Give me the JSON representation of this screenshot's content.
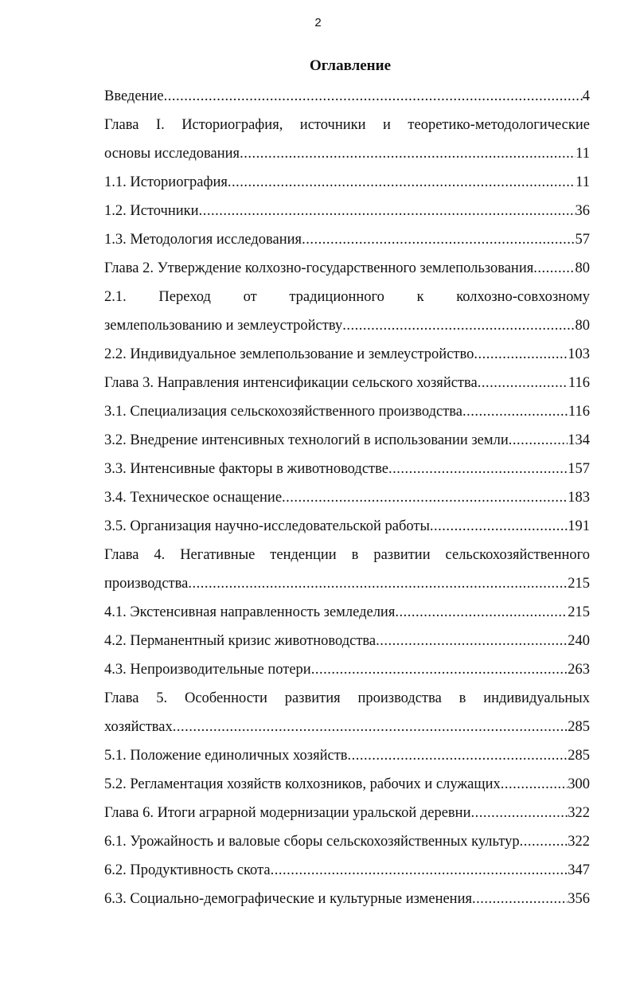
{
  "page_number": "2",
  "title": "Оглавление",
  "entries": [
    {
      "title": "Введение",
      "page": "4"
    },
    {
      "first_line": "Глава I. Историография, источники и теоретико-методологические",
      "title": "основы исследования",
      "page": "11"
    },
    {
      "title": "1.1. Историография",
      "page": "11"
    },
    {
      "title": "1.2. Источники",
      "page": "36"
    },
    {
      "title": "1.3. Методология исследования",
      "page": "57"
    },
    {
      "title": "Глава 2. Утверждение колхозно-государственного землепользования",
      "page": "80"
    },
    {
      "first_line": "2.1. Переход от традиционного к колхозно-совхозному",
      "title": "землепользованию и землеустройству",
      "page": "80"
    },
    {
      "title": "2.2. Индивидуальное землепользование и землеустройство",
      "page": "103"
    },
    {
      "title": "Глава 3. Направления интенсификации сельского хозяйства",
      "page": "116"
    },
    {
      "title": "3.1. Специализация сельскохозяйственного производства",
      "page": "116"
    },
    {
      "title": "3.2. Внедрение интенсивных технологий в использовании земли",
      "page": "134"
    },
    {
      "title": "3.3. Интенсивные факторы в животноводстве",
      "page": "157"
    },
    {
      "title": "3.4. Техническое оснащение",
      "page": "183"
    },
    {
      "title": "3.5. Организация научно-исследовательской работы",
      "page": "191"
    },
    {
      "first_line": "Глава 4. Негативные тенденции в развитии сельскохозяйственного",
      "title": "производства",
      "page": "215"
    },
    {
      "title": "4.1. Экстенсивная направленность земледелия",
      "page": "215"
    },
    {
      "title": "4.2. Перманентный кризис животноводства",
      "page": "240"
    },
    {
      "title": "4.3. Непроизводительные потери",
      "page": "263"
    },
    {
      "first_line": "Глава 5. Особенности развития производства в индивидуальных",
      "title": "хозяйствах",
      "page": "285"
    },
    {
      "title": "5.1. Положение единоличных хозяйств",
      "page": "285"
    },
    {
      "title": "5.2. Регламентация хозяйств колхозников, рабочих и служащих",
      "page": "300"
    },
    {
      "title": "Глава 6. Итоги аграрной модернизации уральской деревни",
      "page": "322"
    },
    {
      "title": "6.1. Урожайность и валовые сборы сельскохозяйственных культур",
      "page": "322"
    },
    {
      "title": "6.2. Продуктивность скота",
      "page": "347"
    },
    {
      "title": "6.3. Социально-демографические и культурные изменения",
      "page": "356"
    }
  ]
}
